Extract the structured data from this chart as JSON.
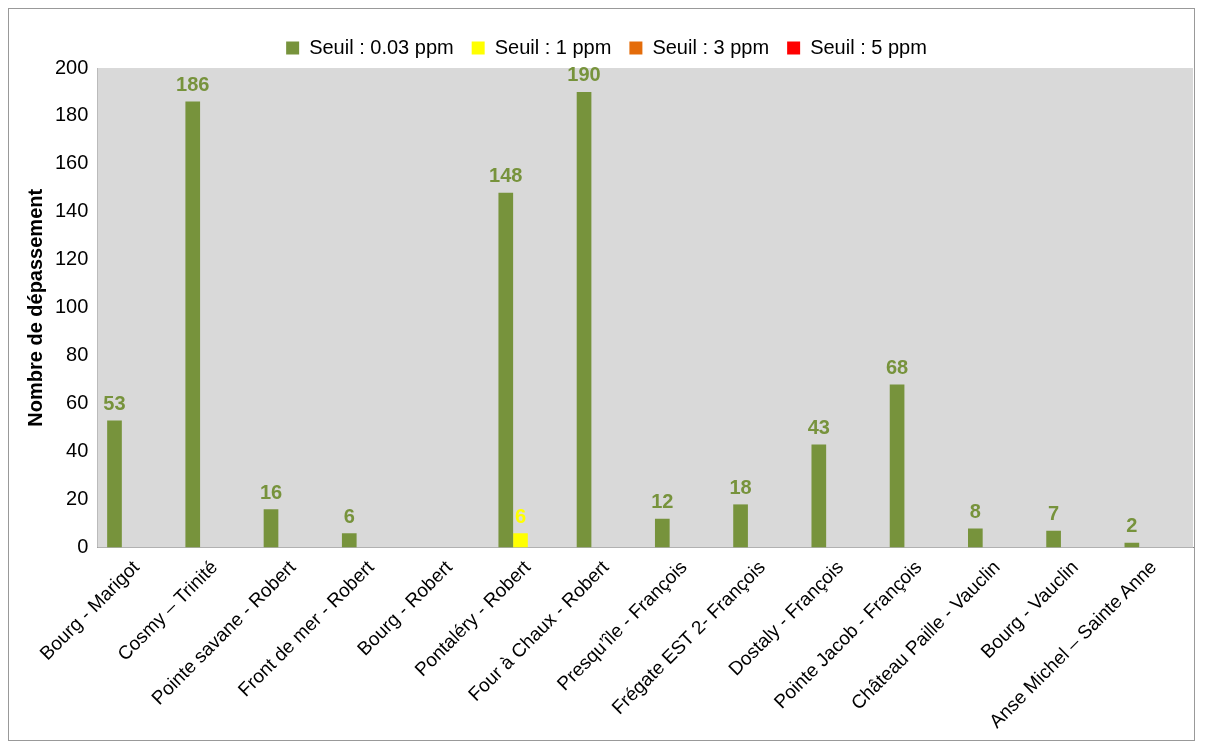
{
  "chart_data": {
    "type": "bar",
    "ylabel": "Nombre de dépassement",
    "categories": [
      "Bourg - Marigot",
      "Cosmy – Trinité",
      "Pointe savane - Robert",
      "Front de mer - Robert",
      "Bourg - Robert",
      "Pontaléry - Robert",
      "Four à Chaux - Robert",
      "Presqu’île - François",
      "Frégate EST 2- François",
      "Dostaly - François",
      "Pointe Jacob - François",
      "Château Paille - Vauclin",
      "Bourg - Vauclin",
      "Anse Michel – Sainte Anne"
    ],
    "series": [
      {
        "name": "Seuil : 0.03 ppm",
        "color": "#77933c",
        "values": [
          53,
          186,
          16,
          6,
          null,
          148,
          190,
          12,
          18,
          43,
          68,
          8,
          7,
          2
        ]
      },
      {
        "name": "Seuil : 1 ppm",
        "color": "#ffff00",
        "values": [
          null,
          null,
          null,
          null,
          null,
          6,
          null,
          null,
          null,
          null,
          null,
          null,
          null,
          null
        ]
      },
      {
        "name": "Seuil : 3 ppm",
        "color": "#e46c0a",
        "values": [
          null,
          null,
          null,
          null,
          null,
          null,
          null,
          null,
          null,
          null,
          null,
          null,
          null,
          null
        ]
      },
      {
        "name": "Seuil : 5 ppm",
        "color": "#ff0000",
        "values": [
          null,
          null,
          null,
          null,
          null,
          null,
          null,
          null,
          null,
          null,
          null,
          null,
          null,
          null
        ]
      }
    ],
    "ylim": [
      0,
      200
    ],
    "yticks": [
      0,
      20,
      40,
      60,
      80,
      100,
      120,
      140,
      160,
      180,
      200
    ],
    "grid": false,
    "legend": "top",
    "data_labels": true
  }
}
